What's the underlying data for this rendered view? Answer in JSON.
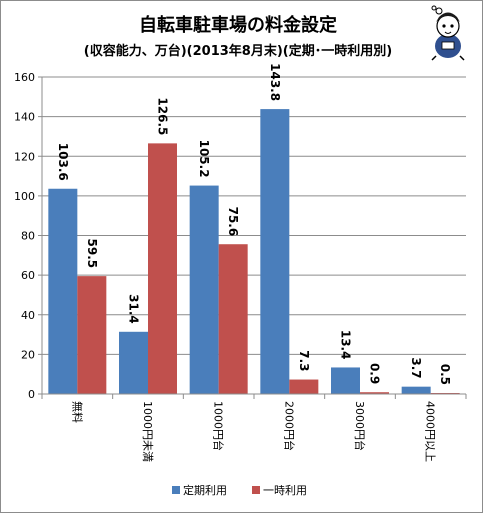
{
  "chart_data": {
    "type": "bar",
    "title": "自転車駐車場の料金設定",
    "subtitle": "(収容能力、万台)(2013年8月末)(定期･一時利用別)",
    "categories": [
      "無料",
      "1000円未満",
      "1000円台",
      "2000円台",
      "3000円台",
      "4000円以上"
    ],
    "series": [
      {
        "name": "定期利用",
        "values": [
          103.6,
          31.4,
          105.2,
          143.8,
          13.4,
          3.7
        ],
        "labels": [
          "103.6",
          "31.4",
          "105.2",
          "143.8",
          "13.4",
          "3.7"
        ],
        "color": "#4a7ebb"
      },
      {
        "name": "一時利用",
        "values": [
          59.5,
          126.5,
          75.6,
          7.3,
          0.9,
          0.5
        ],
        "labels": [
          "59.5",
          "126.5",
          "75.6",
          "7.3",
          "0.9",
          "0.5"
        ],
        "color": "#c0504d"
      }
    ],
    "yticks": [
      "0",
      "20",
      "40",
      "60",
      "80",
      "100",
      "120",
      "140",
      "160"
    ],
    "ylim": [
      0,
      160
    ],
    "grid": true,
    "legend_position": "bottom",
    "mascot": "mascot-icon"
  }
}
